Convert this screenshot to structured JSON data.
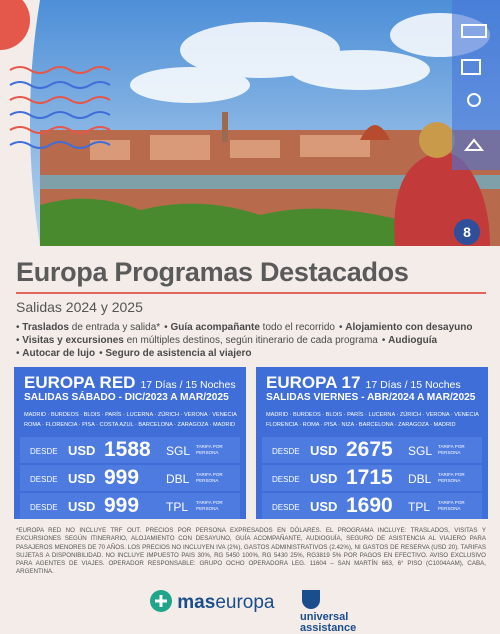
{
  "header": {
    "title": "Europa Programas Destacados",
    "subtitle": "Salidas 2024 y 2025",
    "badge": "8"
  },
  "features": {
    "lines": [
      [
        {
          "strong": "Traslados",
          "rest": " de entrada y salida*"
        },
        {
          "strong": "Guía acompañante",
          "rest": " todo el recorrido"
        },
        {
          "strong": "Alojamiento con desayuno",
          "rest": ""
        }
      ],
      [
        {
          "strong": "Visitas y excursiones",
          "rest": " en múltiples destinos, según itinerario de cada programa"
        },
        {
          "strong": "Audioguía",
          "rest": ""
        }
      ],
      [
        {
          "strong": "Autocar de lujo",
          "rest": ""
        },
        {
          "strong": "Seguro de asistencia al viajero",
          "rest": ""
        }
      ]
    ]
  },
  "programs": [
    {
      "name": "EUROPA RED",
      "duration": "17 Días / 15 Noches",
      "departures": "SALIDAS SÁBADO - DIC/2023 A MAR/2025",
      "cities": [
        "MADRID · BURDEOS · BLOIS · PARÍS · LUCERNA · ZÚRICH · VERONA · VENECIA",
        "ROMA · FLORENCIA · PISA · COSTA AZUL · BARCELONA · ZARAGOZA · MADRID"
      ],
      "prices": [
        {
          "label": "DESDE",
          "currency": "USD",
          "amount": 1588,
          "room": "SGL",
          "note": "TARIFA POR PERSONA"
        },
        {
          "label": "DESDE",
          "currency": "USD",
          "amount": 999,
          "room": "DBL",
          "note": "TARIFA POR PERSONA"
        },
        {
          "label": "DESDE",
          "currency": "USD",
          "amount": 999,
          "room": "TPL",
          "note": "TARIFA POR PERSONA"
        }
      ]
    },
    {
      "name": "EUROPA 17",
      "duration": "17 Días / 15 Noches",
      "departures": "SALIDAS VIERNES - ABR/2024 A MAR/2025",
      "cities": [
        "MADRID · BURDEOS · BLOIS · PARÍS · LUCERNA · ZÚRICH · VERONA · VENECIA",
        "FLORENCIA · ROMA · PISA · NIZA · BARCELONA · ZARAGOZA · MADRID"
      ],
      "prices": [
        {
          "label": "DESDE",
          "currency": "USD",
          "amount": 2675,
          "room": "SGL",
          "note": "TARIFA POR PERSONA"
        },
        {
          "label": "DESDE",
          "currency": "USD",
          "amount": 1715,
          "room": "DBL",
          "note": "TARIFA POR PERSONA"
        },
        {
          "label": "DESDE",
          "currency": "USD",
          "amount": 1690,
          "room": "TPL",
          "note": "TARIFA POR PERSONA"
        }
      ]
    }
  ],
  "disclaimer": "*EUROPA RED NO INCLUYE TRF OUT. PRECIOS POR PERSONA EXPRESADOS EN DÓLARES. EL PROGRAMA INCLUYE: TRASLADOS, VISITAS Y EXCURSIONES SEGÚN ITINERARIO, ALOJAMIENTO CON DESAYUNO, GUÍA ACOMPAÑANTE, AUDIOGUÍA, SEGURO DE ASISTENCIA AL VIAJERO PARA PASAJEROS MENORES DE 70 AÑOS. LOS PRECIOS NO INCLUYEN IVA (2%), GASTOS ADMINISTRATIVOS (2.42%), NI GASTOS DE RESERVA (USD 20). TARIFAS SUJETAS A DISPONIBILIDAD. NO INCLUYE IMPUESTO PAIS 30%, RG 5450 100%, RG 5430 25%, RG3819 5% POR PAGOS EN EFECTIVO. AVISO EXCLUSIVO PARA AGENTES DE VIAJES. OPERADOR RESPONSABLE: GRUPO OCHO OPERADORA LEG. 11604 – SAN MARTÍN 663, 6° PISO (C1004AAM), CABA, ARGENTINA.",
  "logos": {
    "left": {
      "strong": "mas",
      "rest": "europa"
    },
    "right": [
      "universal",
      "assistance"
    ]
  }
}
